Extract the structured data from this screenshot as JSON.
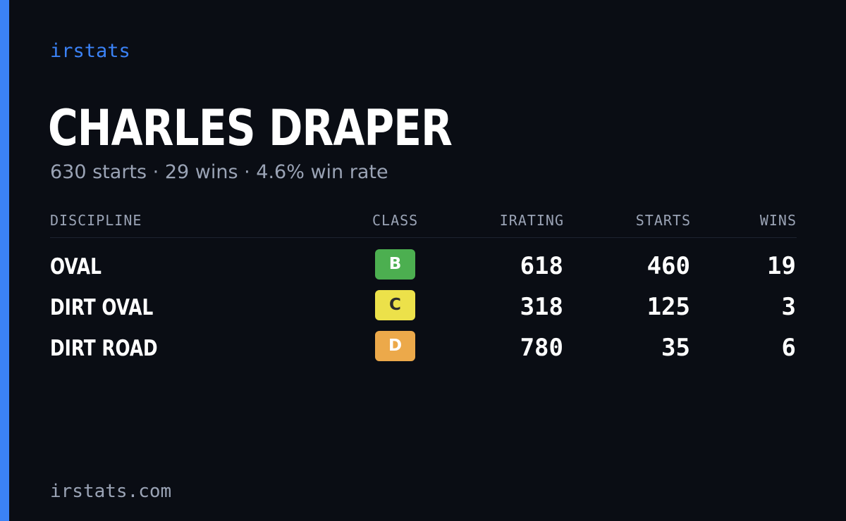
{
  "brand": "irstats",
  "driver": {
    "name": "CHARLES DRAPER",
    "summary": "630 starts · 29 wins · 4.6% win rate"
  },
  "table": {
    "headers": {
      "discipline": "DISCIPLINE",
      "class": "CLASS",
      "irating": "IRATING",
      "starts": "STARTS",
      "wins": "WINS"
    },
    "rows": [
      {
        "discipline": "OVAL",
        "class": "B",
        "class_color": "#4caf50",
        "class_text_color": "#ffffff",
        "irating": "618",
        "starts": "460",
        "wins": "19"
      },
      {
        "discipline": "DIRT OVAL",
        "class": "C",
        "class_color": "#ece14a",
        "class_text_color": "#2b2b2b",
        "irating": "318",
        "starts": "125",
        "wins": "3"
      },
      {
        "discipline": "DIRT ROAD",
        "class": "D",
        "class_color": "#eca94a",
        "class_text_color": "#ffffff",
        "irating": "780",
        "starts": "35",
        "wins": "6"
      }
    ]
  },
  "footer": "irstats.com",
  "colors": {
    "background": "#0a0d14",
    "accent": "#3b82f6",
    "muted_text": "#9aa3b5"
  }
}
